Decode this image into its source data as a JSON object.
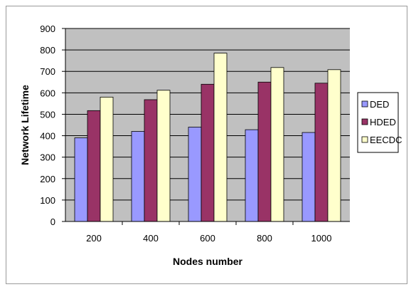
{
  "chart_data": {
    "type": "bar",
    "title": "",
    "xlabel": "Nodes number",
    "ylabel": "Network Lifetime",
    "categories": [
      "200",
      "400",
      "600",
      "800",
      "1000"
    ],
    "ylim": [
      0,
      900
    ],
    "yticks": [
      "0",
      "100",
      "200",
      "300",
      "400",
      "500",
      "600",
      "700",
      "800",
      "900"
    ],
    "grid": true,
    "legend_position": "right",
    "series": [
      {
        "name": "DED",
        "color": "#9999ff",
        "values": [
          390,
          420,
          440,
          428,
          415
        ]
      },
      {
        "name": "HDED",
        "color": "#993366",
        "values": [
          517,
          568,
          640,
          650,
          645
        ]
      },
      {
        "name": "EECDC",
        "color": "#ffffcc",
        "values": [
          580,
          612,
          785,
          718,
          708
        ]
      }
    ],
    "plot_background": "#c0c0c0"
  }
}
